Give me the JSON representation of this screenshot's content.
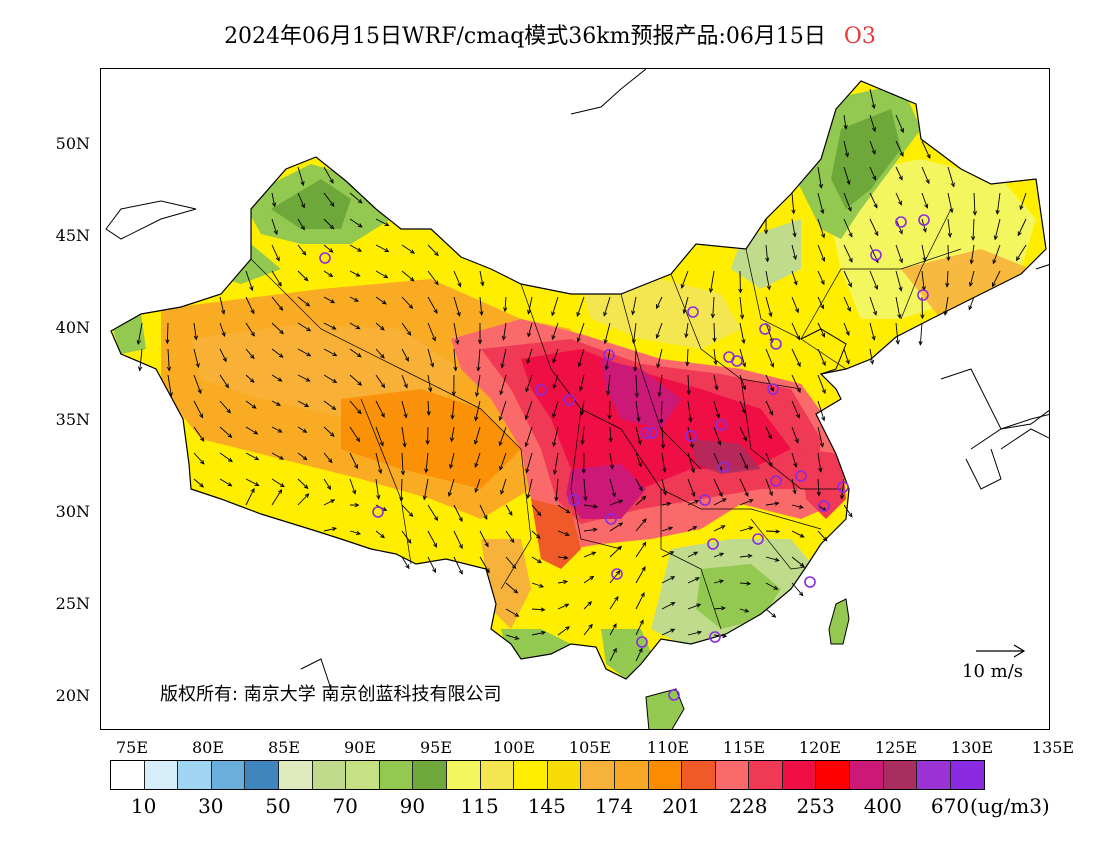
{
  "title": {
    "main": "2024年06月15日WRF/cmaq模式36km预报产品:06月15日",
    "pollutant": "O3"
  },
  "map": {
    "lat_labels": [
      "50N",
      "45N",
      "40N",
      "35N",
      "30N",
      "25N",
      "20N"
    ],
    "lon_labels": [
      "75E",
      "80E",
      "85E",
      "90E",
      "95E",
      "100E",
      "105E",
      "110E",
      "115E",
      "120E",
      "125E",
      "130E",
      "135E"
    ],
    "copyright": "版权所有: 南京大学 南京创蓝科技有限公司",
    "wind_reference": "10 m/s"
  },
  "colorbar": {
    "colors": [
      "#ffffff",
      "#d6eefa",
      "#9fd4f2",
      "#6aaedb",
      "#3f86bf",
      "#dfeabf",
      "#c1db8d",
      "#c6e084",
      "#93c950",
      "#6ea83a",
      "#f4f660",
      "#f4e650",
      "#ffee00",
      "#f8dc08",
      "#f7b23c",
      "#f9a825",
      "#fb8b00",
      "#f05a28",
      "#fb6a6a",
      "#f03955",
      "#ef0f45",
      "#ff0000",
      "#cc1877",
      "#a72e5f",
      "#9b32d4",
      "#8a2be2"
    ],
    "labels": [
      "10",
      "30",
      "50",
      "70",
      "90",
      "115",
      "145",
      "174",
      "201",
      "228",
      "253",
      "400",
      "670"
    ],
    "units": "(ug/m3)"
  }
}
